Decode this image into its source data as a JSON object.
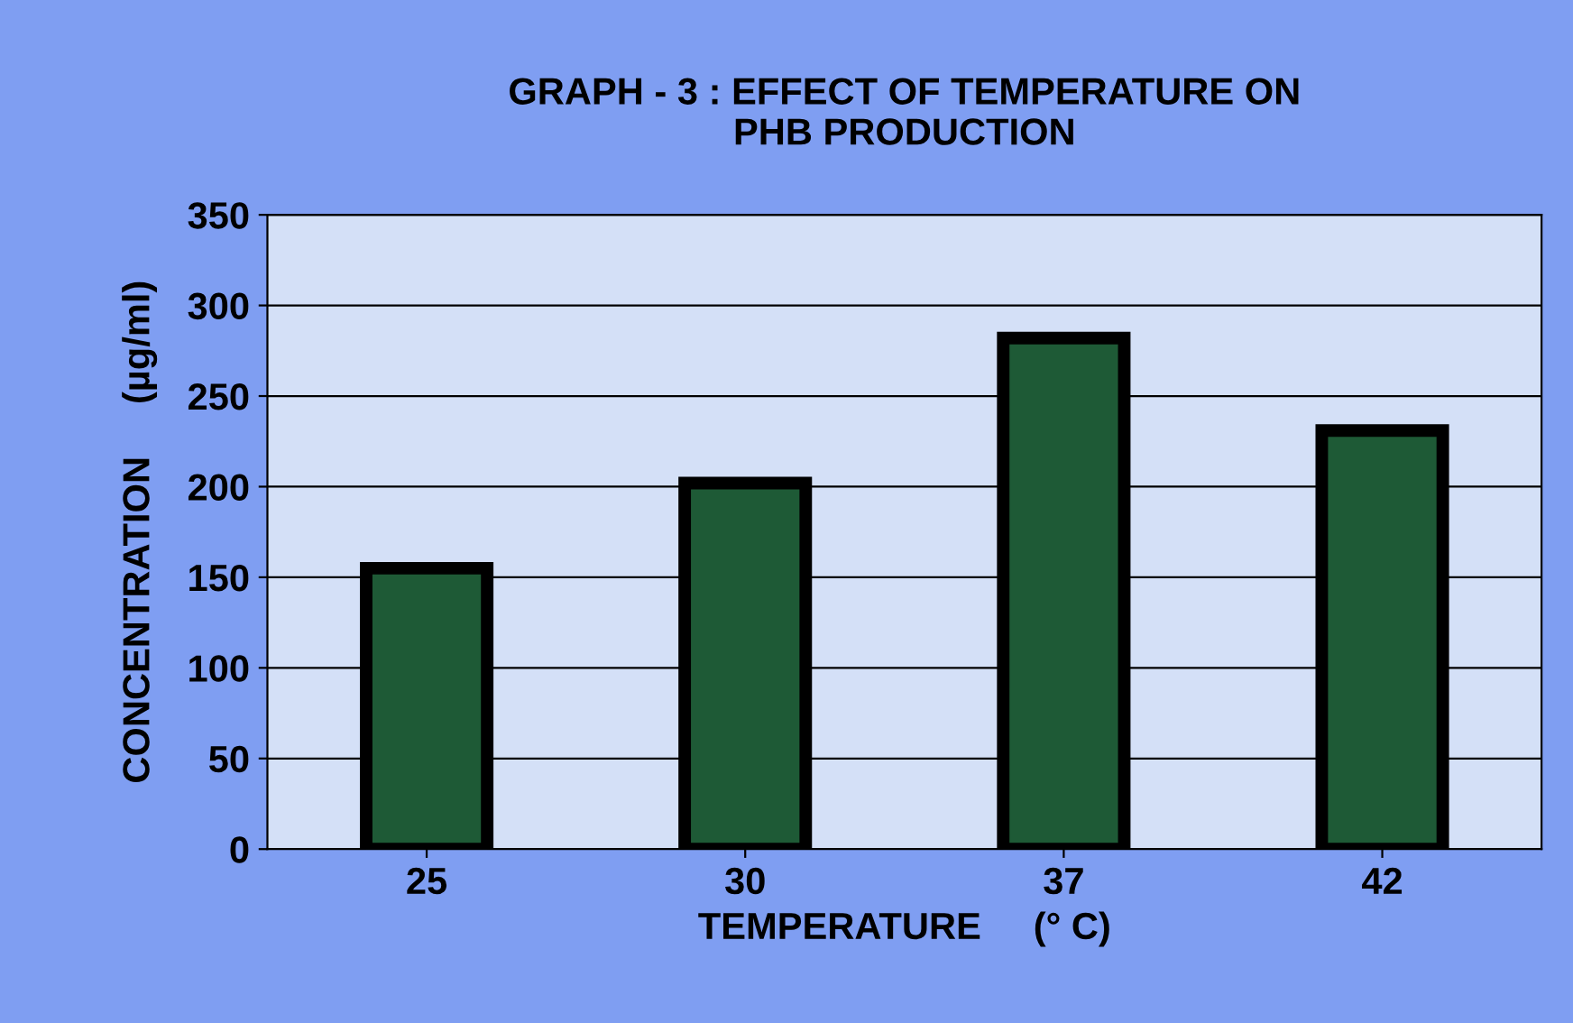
{
  "chart_data": {
    "type": "bar",
    "title": "GRAPH - 3 : EFFECT OF TEMPERATURE ON\nPHB PRODUCTION",
    "xlabel": "TEMPERATURE     (° C)",
    "ylabel": "CONCENTRATION     (µg/ml)",
    "categories": [
      "25",
      "30",
      "37",
      "42"
    ],
    "values": [
      155,
      202,
      282,
      231
    ],
    "color": "#1e5a36",
    "ylim": [
      0,
      350
    ],
    "yticks": [
      0,
      50,
      100,
      150,
      200,
      250,
      300,
      350
    ],
    "grid": "y"
  }
}
